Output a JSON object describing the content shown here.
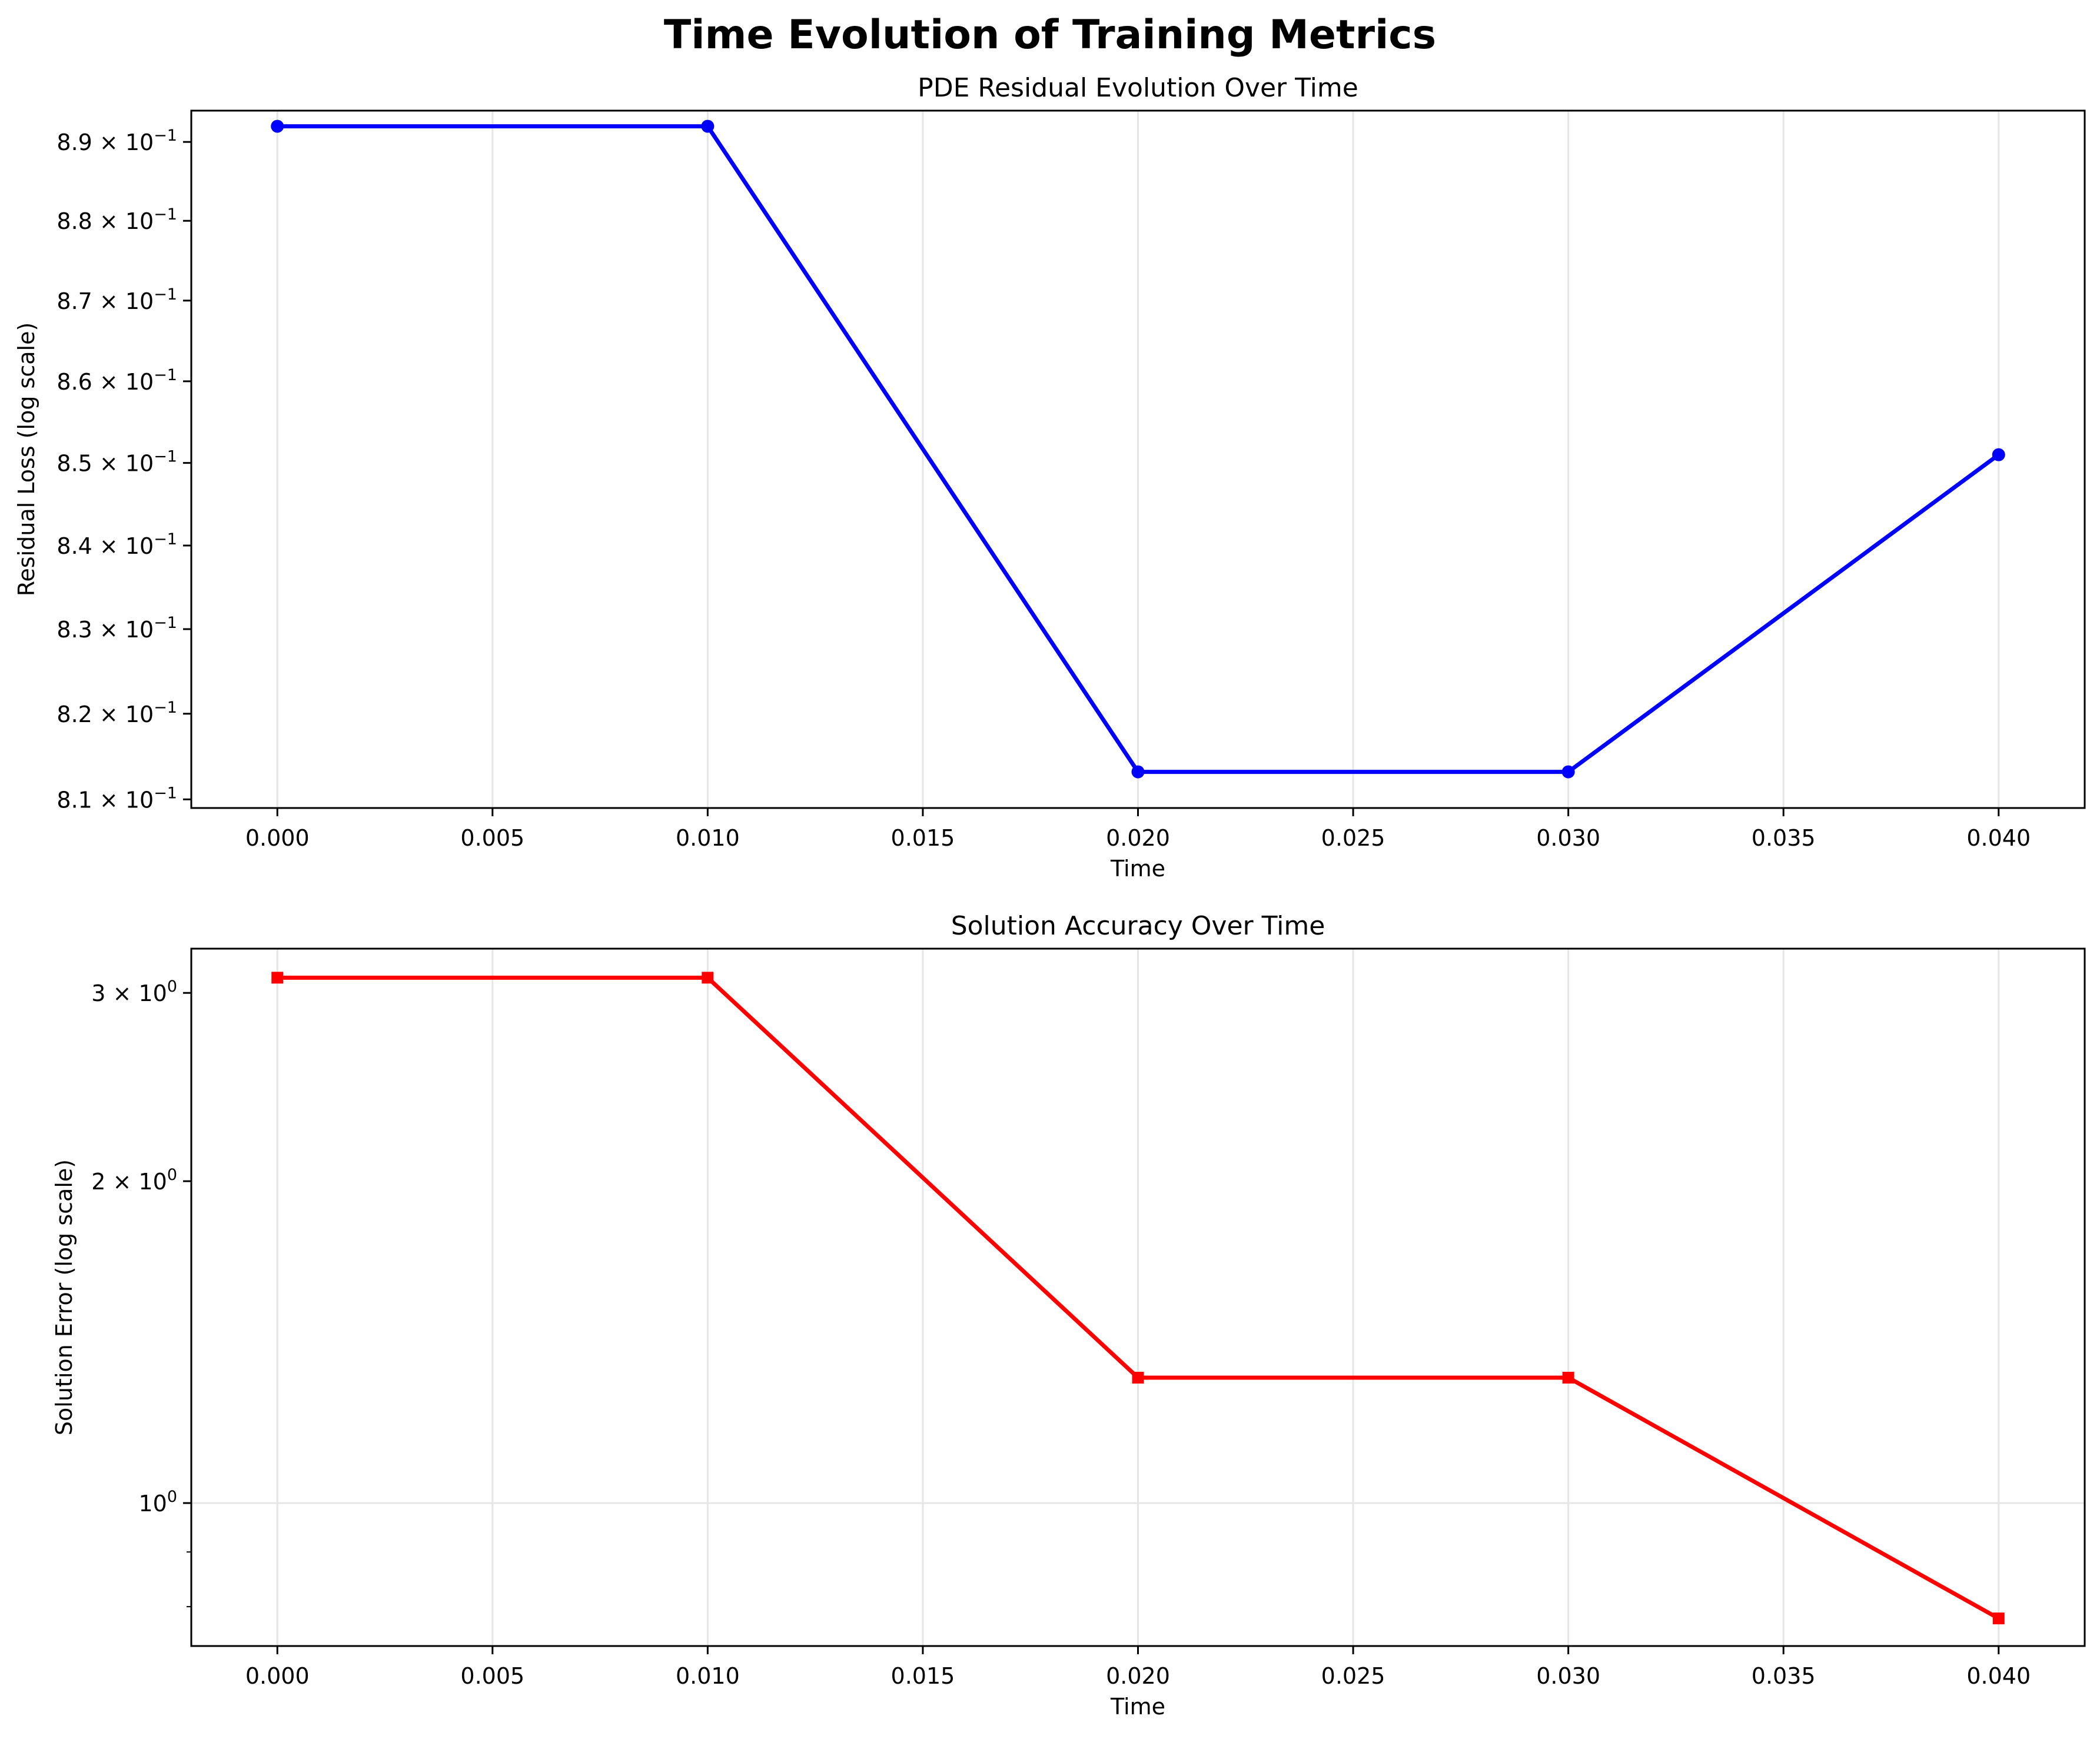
{
  "figure": {
    "title": "Time Evolution of Training Metrics"
  },
  "chart_data": [
    {
      "type": "line",
      "title": "PDE Residual Evolution Over Time",
      "xlabel": "Time",
      "ylabel": "Residual Loss (log scale)",
      "yscale": "log",
      "grid": "x-only",
      "xlim": [
        -0.002,
        0.042
      ],
      "ylim": [
        0.809,
        0.894
      ],
      "xticks": [
        0.0,
        0.005,
        0.01,
        0.015,
        0.02,
        0.025,
        0.03,
        0.035,
        0.04
      ],
      "xtick_labels": [
        "0.000",
        "0.005",
        "0.010",
        "0.015",
        "0.020",
        "0.025",
        "0.030",
        "0.035",
        "0.040"
      ],
      "yticks": [
        0.81,
        0.82,
        0.83,
        0.84,
        0.85,
        0.86,
        0.87,
        0.88,
        0.89
      ],
      "ytick_labels": [
        {
          "mantissa": "8.1",
          "exp": "−1"
        },
        {
          "mantissa": "8.2",
          "exp": "−1"
        },
        {
          "mantissa": "8.3",
          "exp": "−1"
        },
        {
          "mantissa": "8.4",
          "exp": "−1"
        },
        {
          "mantissa": "8.5",
          "exp": "−1"
        },
        {
          "mantissa": "8.6",
          "exp": "−1"
        },
        {
          "mantissa": "8.7",
          "exp": "−1"
        },
        {
          "mantissa": "8.8",
          "exp": "−1"
        },
        {
          "mantissa": "8.9",
          "exp": "−1"
        }
      ],
      "series": [
        {
          "color": "#0000ff",
          "marker": "circle",
          "x": [
            0.0,
            0.01,
            0.02,
            0.03,
            0.04
          ],
          "y": [
            0.892,
            0.892,
            0.8132,
            0.8132,
            0.851
          ]
        }
      ]
    },
    {
      "type": "line",
      "title": "Solution Accuracy Over Time",
      "xlabel": "Time",
      "ylabel": "Solution Error (log scale)",
      "yscale": "log",
      "grid": "both",
      "xlim": [
        -0.002,
        0.042
      ],
      "ylim": [
        0.735,
        3.3
      ],
      "xticks": [
        0.0,
        0.005,
        0.01,
        0.015,
        0.02,
        0.025,
        0.03,
        0.035,
        0.04
      ],
      "xtick_labels": [
        "0.000",
        "0.005",
        "0.010",
        "0.015",
        "0.020",
        "0.025",
        "0.030",
        "0.035",
        "0.040"
      ],
      "yticks": [
        1,
        2,
        3
      ],
      "ytick_labels": [
        {
          "mantissa": "10",
          "exp": "0",
          "plain_power": true
        },
        {
          "mantissa": "2 × 10",
          "exp": "0"
        },
        {
          "mantissa": "3 × 10",
          "exp": "0"
        }
      ],
      "minor_yticks": [
        0.8,
        0.9
      ],
      "series": [
        {
          "color": "#ff0000",
          "marker": "square",
          "x": [
            0.0,
            0.01,
            0.02,
            0.03,
            0.04
          ],
          "y": [
            3.1,
            3.1,
            1.31,
            1.31,
            0.78
          ]
        }
      ]
    }
  ]
}
